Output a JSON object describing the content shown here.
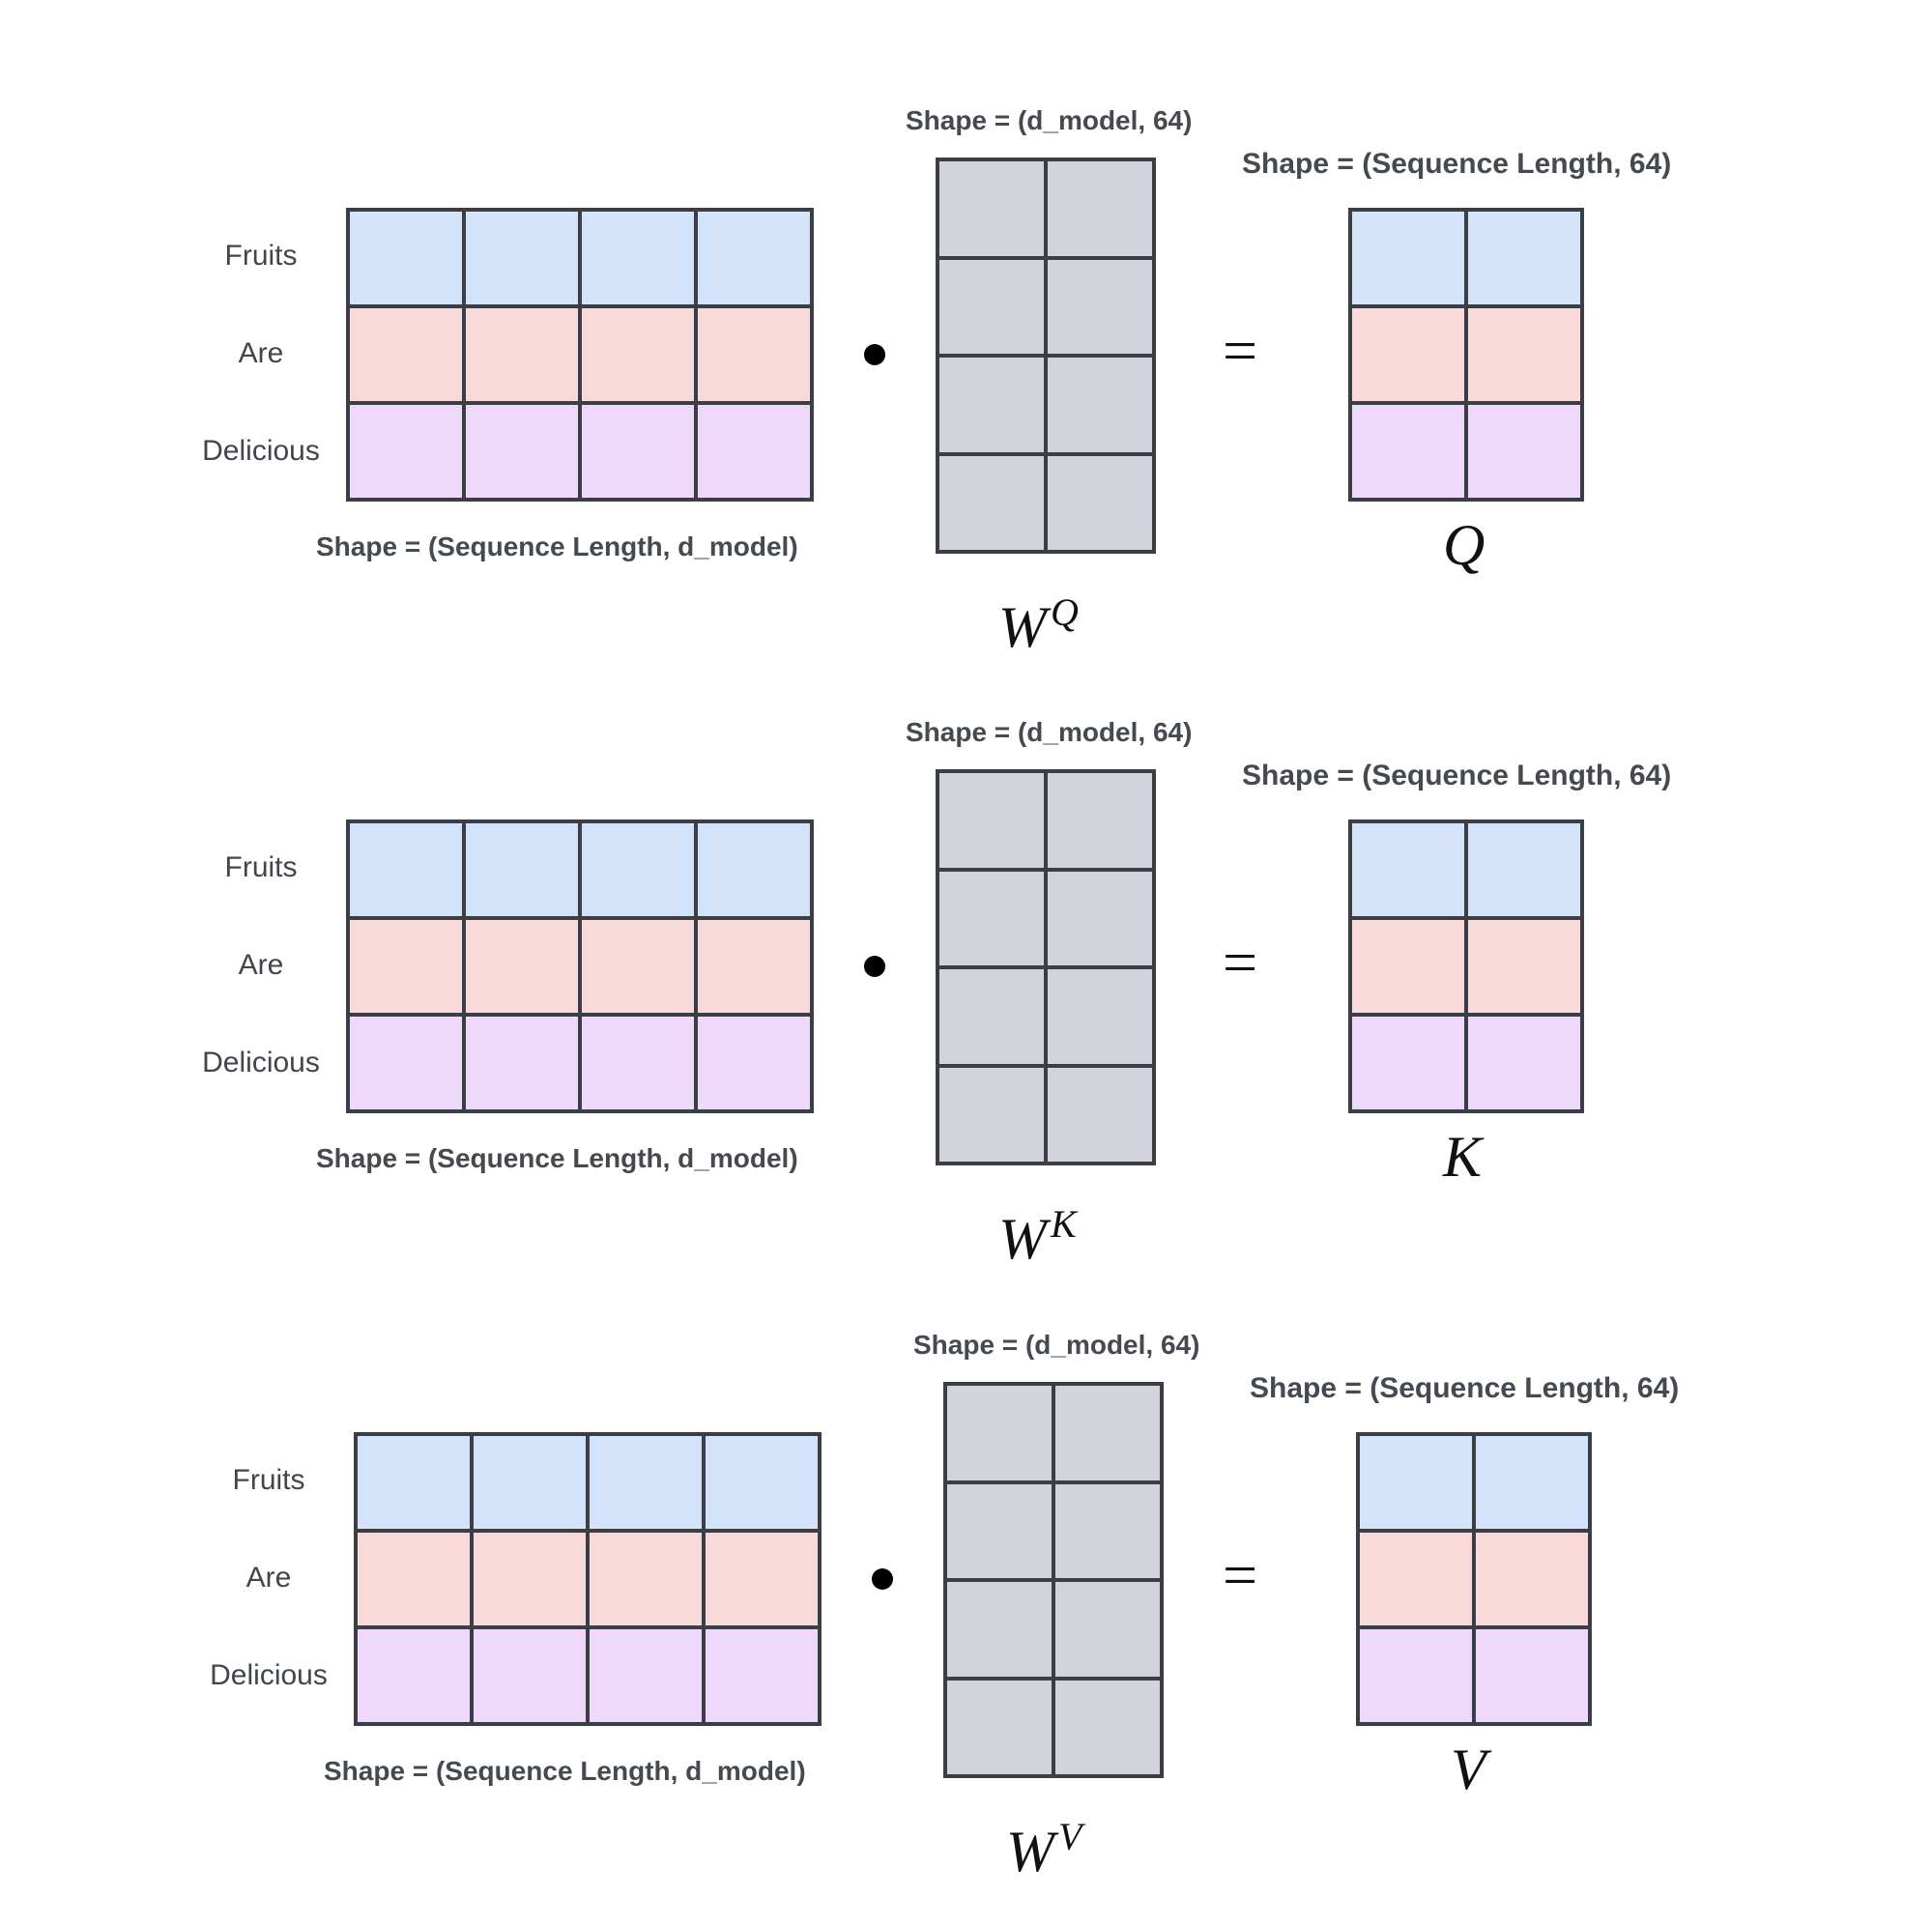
{
  "colors": {
    "row_fruits": "#d3e4fa",
    "row_are": "#f8dada",
    "row_delicious": "#eed9fa",
    "weight_cell": "#d1d5db",
    "border": "#3b3f45"
  },
  "operators": {
    "dot": "•",
    "equals": "="
  },
  "blocks": [
    {
      "input": {
        "rows": [
          "Fruits",
          "Are",
          "Delicious"
        ],
        "shape": "Shape = (Sequence Length, d_model)"
      },
      "weight": {
        "symbol": "W",
        "superscript": "Q",
        "shape": "Shape = (d_model, 64)"
      },
      "output": {
        "symbol": "Q",
        "shape": "Shape = (Sequence Length,  64)"
      }
    },
    {
      "input": {
        "rows": [
          "Fruits",
          "Are",
          "Delicious"
        ],
        "shape": "Shape = (Sequence Length, d_model)"
      },
      "weight": {
        "symbol": "W",
        "superscript": "K",
        "shape": "Shape = (d_model, 64)"
      },
      "output": {
        "symbol": "K",
        "shape": "Shape = (Sequence Length,  64)"
      }
    },
    {
      "input": {
        "rows": [
          "Fruits",
          "Are",
          "Delicious"
        ],
        "shape": "Shape = (Sequence Length, d_model)"
      },
      "weight": {
        "symbol": "W",
        "superscript": "V",
        "shape": "Shape = (d_model, 64)"
      },
      "output": {
        "symbol": "V",
        "shape": "Shape = (Sequence Length,  64)"
      }
    }
  ]
}
